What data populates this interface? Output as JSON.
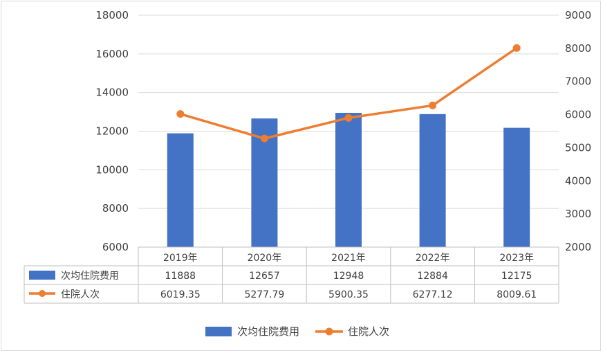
{
  "chart_data": {
    "type": "bar",
    "categories": [
      "2019年",
      "2020年",
      "2021年",
      "2022年",
      "2023年"
    ],
    "series": [
      {
        "name": "次均住院费用",
        "type": "bar",
        "axis": "left",
        "values": [
          11888,
          12657,
          12948,
          12884,
          12175
        ],
        "labels": [
          "11888",
          "12657",
          "12948",
          "12884",
          "12175"
        ],
        "color": "#4472C4"
      },
      {
        "name": "住院人次",
        "type": "line",
        "axis": "right",
        "values": [
          6019.35,
          5277.79,
          5900.35,
          6277.12,
          8009.61
        ],
        "labels": [
          "6019.35",
          "5277.79",
          "5900.35",
          "6277.12",
          "8009.61"
        ],
        "color": "#ED7D31"
      }
    ],
    "y_left": {
      "min": 6000,
      "max": 18000,
      "step": 2000,
      "ticks": [
        "6000",
        "8000",
        "10000",
        "12000",
        "14000",
        "16000",
        "18000"
      ]
    },
    "y_right": {
      "min": 2000,
      "max": 9000,
      "step": 1000,
      "ticks": [
        "2000",
        "3000",
        "4000",
        "5000",
        "6000",
        "7000",
        "8000",
        "9000"
      ]
    },
    "data_table": true,
    "grid": true,
    "legend": "bottom"
  }
}
